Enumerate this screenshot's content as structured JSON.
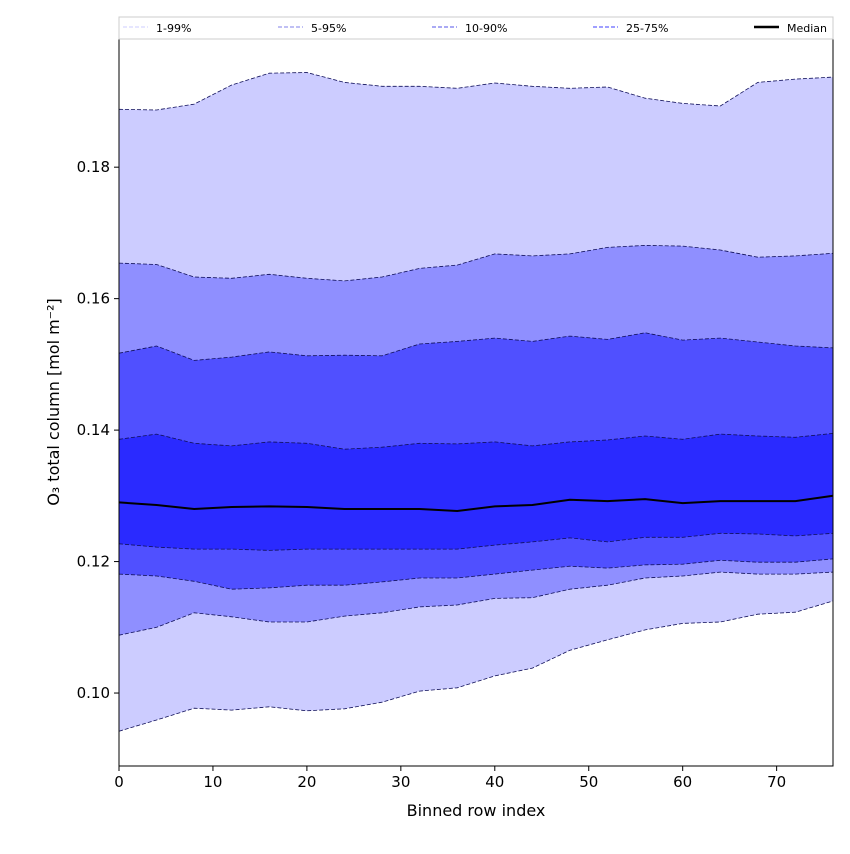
{
  "chart_data": {
    "type": "area",
    "title": "",
    "xlabel": "Binned row index",
    "ylabel": "O₃ total column [mol m⁻²]",
    "xlim": [
      0,
      76
    ],
    "ylim": [
      0.0889,
      0.1995
    ],
    "xticks": [
      0,
      10,
      20,
      30,
      40,
      50,
      60,
      70
    ],
    "xtick_labels": [
      "0",
      "10",
      "20",
      "30",
      "40",
      "50",
      "60",
      "70"
    ],
    "yticks": [
      0.1,
      0.12,
      0.14,
      0.16,
      0.18
    ],
    "ytick_labels": [
      "0.10",
      "0.12",
      "0.14",
      "0.16",
      "0.18"
    ],
    "grid": false,
    "legend_position": "top",
    "legend": [
      "1-99%",
      "5-95%",
      "10-90%",
      "25-75%",
      "Median"
    ],
    "x": [
      0,
      4,
      8,
      12,
      16,
      20,
      24,
      28,
      32,
      36,
      40,
      44,
      48,
      52,
      56,
      60,
      64,
      68,
      72,
      76
    ],
    "series": [
      {
        "name": "p1",
        "values": [
          0.0942,
          0.0959,
          0.0977,
          0.0974,
          0.0979,
          0.0973,
          0.0976,
          0.0986,
          0.1003,
          0.1008,
          0.1026,
          0.1038,
          0.1065,
          0.1081,
          0.1096,
          0.1106,
          0.1108,
          0.112,
          0.1123,
          0.114
        ]
      },
      {
        "name": "p5",
        "values": [
          0.1088,
          0.11,
          0.1122,
          0.1116,
          0.1108,
          0.1108,
          0.1117,
          0.1122,
          0.1131,
          0.1134,
          0.1144,
          0.1145,
          0.1158,
          0.1164,
          0.1175,
          0.1178,
          0.1184,
          0.1181,
          0.1181,
          0.1184
        ]
      },
      {
        "name": "p10",
        "values": [
          0.1181,
          0.1178,
          0.117,
          0.1158,
          0.116,
          0.1164,
          0.1164,
          0.1169,
          0.1175,
          0.1175,
          0.1181,
          0.1187,
          0.1193,
          0.119,
          0.1195,
          0.1196,
          0.1202,
          0.1199,
          0.1199,
          0.1204
        ]
      },
      {
        "name": "p25",
        "values": [
          0.1227,
          0.1222,
          0.1219,
          0.1219,
          0.1217,
          0.1219,
          0.1219,
          0.1219,
          0.1219,
          0.1219,
          0.1225,
          0.123,
          0.1236,
          0.123,
          0.1237,
          0.1237,
          0.1243,
          0.1242,
          0.1239,
          0.1243
        ]
      },
      {
        "name": "Median",
        "values": [
          0.129,
          0.1286,
          0.128,
          0.1283,
          0.1284,
          0.1283,
          0.128,
          0.128,
          0.128,
          0.1277,
          0.1284,
          0.1286,
          0.1294,
          0.1292,
          0.1295,
          0.1289,
          0.1292,
          0.1292,
          0.1292,
          0.13
        ]
      },
      {
        "name": "p75",
        "values": [
          0.1386,
          0.1394,
          0.138,
          0.1376,
          0.1382,
          0.138,
          0.1371,
          0.1374,
          0.138,
          0.1379,
          0.1382,
          0.1376,
          0.1382,
          0.1385,
          0.1391,
          0.1386,
          0.1394,
          0.1391,
          0.1389,
          0.1395
        ]
      },
      {
        "name": "p90",
        "values": [
          0.1517,
          0.1528,
          0.1506,
          0.1511,
          0.1519,
          0.1513,
          0.1514,
          0.1513,
          0.1531,
          0.1535,
          0.154,
          0.1535,
          0.1543,
          0.1538,
          0.1548,
          0.1537,
          0.154,
          0.1534,
          0.1528,
          0.1525
        ]
      },
      {
        "name": "p95",
        "values": [
          0.1654,
          0.1652,
          0.1633,
          0.1631,
          0.1637,
          0.1631,
          0.1627,
          0.1633,
          0.1646,
          0.1651,
          0.1668,
          0.1665,
          0.1668,
          0.1678,
          0.1681,
          0.168,
          0.1674,
          0.1663,
          0.1665,
          0.1669
        ]
      },
      {
        "name": "p99",
        "values": [
          0.1888,
          0.1887,
          0.1896,
          0.1925,
          0.1943,
          0.1944,
          0.1929,
          0.1923,
          0.1923,
          0.192,
          0.1928,
          0.1923,
          0.192,
          0.1922,
          0.1905,
          0.1897,
          0.1893,
          0.1929,
          0.1934,
          0.1937
        ]
      }
    ],
    "bands": [
      {
        "name": "1-99%",
        "lower": "p1",
        "upper": "p99",
        "color": "#ccccff",
        "line_color": "#d8d8ff"
      },
      {
        "name": "5-95%",
        "lower": "p5",
        "upper": "p95",
        "color": "#8f8fff",
        "line_color": "#9a9aee"
      },
      {
        "name": "10-90%",
        "lower": "p10",
        "upper": "p90",
        "color": "#5050ff",
        "line_color": "#7777ee"
      },
      {
        "name": "25-75%",
        "lower": "p25",
        "upper": "p75",
        "color": "#2a2aff",
        "line_color": "#6666ff"
      }
    ],
    "median_color": "#000000",
    "edge_color": "#10105a"
  }
}
